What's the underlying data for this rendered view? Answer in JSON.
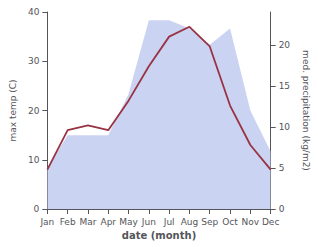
{
  "chart_data": {
    "type": "line",
    "categories": [
      "Jan",
      "Feb",
      "Mar",
      "Apr",
      "May",
      "Jun",
      "Jul",
      "Aug",
      "Sep",
      "Oct",
      "Nov",
      "Dec"
    ],
    "series": [
      {
        "name": "med. precipitation (kg/m2)",
        "type": "area",
        "axis": "y2",
        "color": "#b8c4ee",
        "values": [
          5,
          9,
          9,
          9,
          14,
          23,
          23,
          22,
          20,
          22,
          12,
          7
        ]
      },
      {
        "name": "max temp (C)",
        "type": "line",
        "color": "#993344",
        "values": [
          8,
          16,
          17,
          16,
          22,
          29,
          35,
          37,
          33,
          21,
          13,
          8
        ]
      }
    ],
    "xlabel": "date (month)",
    "ylabel": "max temp (C)",
    "y2label": "med. precipitation (kg/m2)",
    "ylim": [
      0,
      40
    ],
    "yticks": [
      0,
      10,
      20,
      30,
      40
    ],
    "y2lim": [
      0,
      24
    ],
    "y2ticks": [
      0,
      5,
      10,
      15,
      20
    ],
    "grid": false
  }
}
